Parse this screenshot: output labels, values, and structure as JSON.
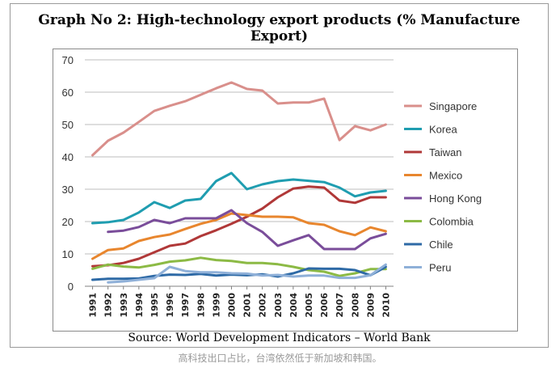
{
  "chart_data": {
    "type": "line",
    "title": "Graph No 2: High-technology export products (% Manufacture Export)",
    "xlabel": "",
    "ylabel": "",
    "ylim": [
      0,
      70
    ],
    "yticks": [
      0,
      10,
      20,
      30,
      40,
      50,
      60,
      70
    ],
    "grid": true,
    "legend_position": "right",
    "categories": [
      "1991",
      "1992",
      "1993",
      "1994",
      "1995",
      "1996",
      "1997",
      "1998",
      "1999",
      "2000",
      "2001",
      "2002",
      "2003",
      "2004",
      "2005",
      "2006",
      "2007",
      "2008",
      "2009",
      "2010"
    ],
    "series": [
      {
        "name": "Singapore",
        "color": "#d98f8b",
        "values": [
          40.5,
          45,
          47.5,
          50.8,
          54.2,
          55.8,
          57.2,
          59.2,
          61.2,
          63,
          61,
          60.5,
          56.5,
          56.8,
          56.8,
          58,
          45.2,
          49.5,
          48.2,
          50
        ]
      },
      {
        "name": "Korea",
        "color": "#1f9db0",
        "values": [
          19.5,
          19.8,
          20.5,
          22.8,
          26,
          24.2,
          26.5,
          27,
          32.5,
          35,
          30,
          31.5,
          32.5,
          33,
          32.6,
          32.2,
          30.5,
          27.8,
          29,
          29.5
        ]
      },
      {
        "name": "Taiwan",
        "color": "#b03838",
        "values": [
          6.2,
          6.5,
          7.2,
          8.5,
          10.5,
          12.5,
          13.2,
          15.5,
          17.3,
          19.3,
          21.5,
          24,
          27.5,
          30.2,
          30.8,
          30.5,
          26.5,
          25.8,
          27.5,
          27.5
        ]
      },
      {
        "name": "Mexico",
        "color": "#e8862e",
        "values": [
          8.5,
          11.2,
          11.7,
          14,
          15.2,
          16,
          17.7,
          19.3,
          20.5,
          22.5,
          22,
          21.5,
          21.5,
          21.3,
          19.5,
          19,
          17,
          15.8,
          18.2,
          17
        ]
      },
      {
        "name": "Hong Kong",
        "color": "#7a4d9a",
        "values": [
          null,
          16.8,
          17.2,
          18.3,
          20.5,
          19.5,
          21,
          21,
          21,
          23.5,
          19.5,
          16.8,
          12.5,
          14.2,
          15.8,
          11.5,
          11.5,
          11.5,
          14.8,
          16.2
        ]
      },
      {
        "name": "Colombia",
        "color": "#8cba45",
        "values": [
          5.4,
          6.7,
          6.1,
          5.8,
          6.6,
          7.6,
          8,
          8.8,
          8.1,
          7.8,
          7.2,
          7.2,
          6.8,
          6,
          5,
          4.5,
          3.2,
          4,
          5.3,
          5.3
        ]
      },
      {
        "name": "Chile",
        "color": "#2e6aa6",
        "values": [
          2,
          2.3,
          2.3,
          2.4,
          3.2,
          3.6,
          3.5,
          3.8,
          3.3,
          3.6,
          3.4,
          3.7,
          3,
          4,
          5.5,
          5.4,
          5.4,
          5,
          3.4,
          6
        ]
      },
      {
        "name": "Peru",
        "color": "#8fb0d8",
        "values": [
          null,
          1.2,
          1.5,
          2,
          2.5,
          6,
          4.7,
          4.3,
          4.3,
          4,
          3.9,
          3.3,
          3.5,
          3,
          3.3,
          3.3,
          2.6,
          2.6,
          3.4,
          6.7
        ]
      }
    ]
  },
  "source": "Source: World Development Indicators – World Bank",
  "caption": "高科技出口占比，台湾依然低于新加坡和韩国。"
}
